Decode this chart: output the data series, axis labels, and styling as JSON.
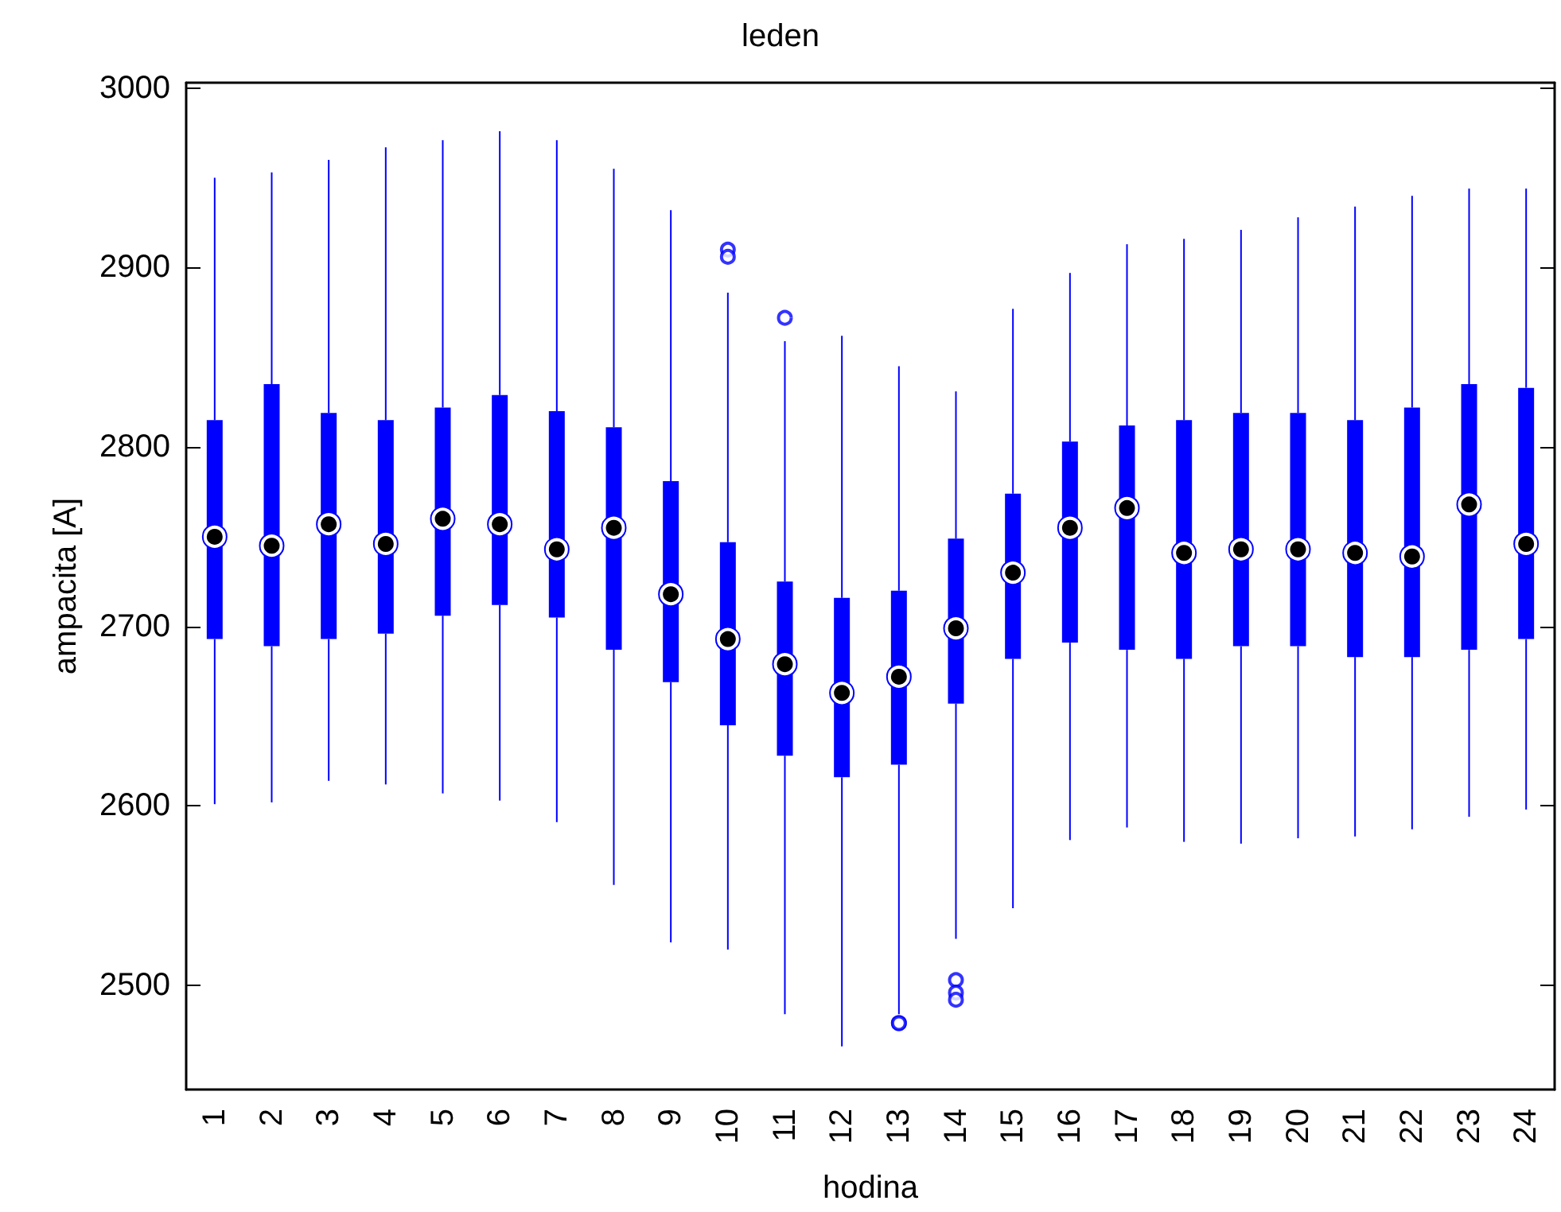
{
  "chart_data": {
    "type": "box",
    "title": "leden",
    "xlabel": "hodina",
    "ylabel": "ampacita [A]",
    "categories": [
      "1",
      "2",
      "3",
      "4",
      "5",
      "6",
      "7",
      "8",
      "9",
      "10",
      "11",
      "12",
      "13",
      "14",
      "15",
      "16",
      "17",
      "18",
      "19",
      "20",
      "21",
      "22",
      "23",
      "24"
    ],
    "color": "#0000ff",
    "boxes": [
      {
        "low": 2601,
        "q1": 2693,
        "median": 2750,
        "q3": 2815,
        "high": 2950
      },
      {
        "low": 2602,
        "q1": 2689,
        "median": 2745,
        "q3": 2835,
        "high": 2953
      },
      {
        "low": 2614,
        "q1": 2693,
        "median": 2757,
        "q3": 2819,
        "high": 2960
      },
      {
        "low": 2612,
        "q1": 2696,
        "median": 2746,
        "q3": 2815,
        "high": 2967
      },
      {
        "low": 2607,
        "q1": 2706,
        "median": 2760,
        "q3": 2822,
        "high": 2971
      },
      {
        "low": 2603,
        "q1": 2712,
        "median": 2757,
        "q3": 2829,
        "high": 2976
      },
      {
        "low": 2591,
        "q1": 2705,
        "median": 2743,
        "q3": 2820,
        "high": 2971
      },
      {
        "low": 2556,
        "q1": 2687,
        "median": 2755,
        "q3": 2811,
        "high": 2955
      },
      {
        "low": 2524,
        "q1": 2669,
        "median": 2718,
        "q3": 2781,
        "high": 2932
      },
      {
        "low": 2520,
        "q1": 2645,
        "median": 2693,
        "q3": 2747,
        "high": 2886,
        "outliers": [
          2910,
          2906
        ]
      },
      {
        "low": 2484,
        "q1": 2628,
        "median": 2679,
        "q3": 2725,
        "high": 2859,
        "outliers": [
          2872
        ]
      },
      {
        "low": 2466,
        "q1": 2616,
        "median": 2663,
        "q3": 2716,
        "high": 2862
      },
      {
        "low": 2484,
        "q1": 2623,
        "median": 2672,
        "q3": 2720,
        "high": 2845,
        "outliers": [
          2479,
          2479
        ]
      },
      {
        "low": 2526,
        "q1": 2657,
        "median": 2699,
        "q3": 2749,
        "high": 2831,
        "outliers": [
          2503,
          2496,
          2492
        ]
      },
      {
        "low": 2543,
        "q1": 2682,
        "median": 2730,
        "q3": 2774,
        "high": 2877
      },
      {
        "low": 2581,
        "q1": 2691,
        "median": 2755,
        "q3": 2803,
        "high": 2897
      },
      {
        "low": 2588,
        "q1": 2687,
        "median": 2766,
        "q3": 2812,
        "high": 2913
      },
      {
        "low": 2580,
        "q1": 2682,
        "median": 2741,
        "q3": 2815,
        "high": 2916
      },
      {
        "low": 2579,
        "q1": 2689,
        "median": 2743,
        "q3": 2819,
        "high": 2921
      },
      {
        "low": 2582,
        "q1": 2689,
        "median": 2743,
        "q3": 2819,
        "high": 2928
      },
      {
        "low": 2583,
        "q1": 2683,
        "median": 2741,
        "q3": 2815,
        "high": 2934
      },
      {
        "low": 2587,
        "q1": 2683,
        "median": 2739,
        "q3": 2822,
        "high": 2940
      },
      {
        "low": 2594,
        "q1": 2687,
        "median": 2768,
        "q3": 2835,
        "high": 2944
      },
      {
        "low": 2598,
        "q1": 2693,
        "median": 2746,
        "q3": 2833,
        "high": 2944
      }
    ],
    "ylim": [
      2442,
      3003
    ],
    "yticks": [
      2500,
      2600,
      2700,
      2800,
      2900,
      3000
    ],
    "grid": false,
    "legend": false
  }
}
